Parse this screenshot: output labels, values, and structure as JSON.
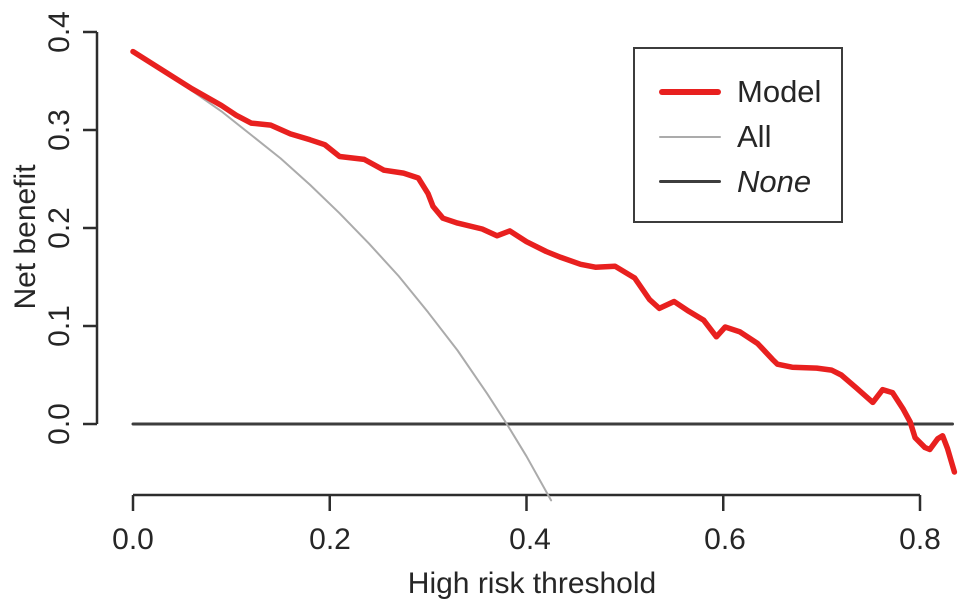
{
  "figure": {
    "xlabel": "High risk threshold",
    "ylabel": "Net benefit",
    "x_ticks": [
      "0.0",
      "0.2",
      "0.4",
      "0.6",
      "0.8"
    ],
    "y_ticks": [
      "0.4",
      "0.3",
      "0.2",
      "0.1",
      "0.0"
    ],
    "axis_color": "#2d2d2d",
    "text_color": "#262626",
    "background_color": "#ffffff",
    "legend": [
      {
        "label": "Model",
        "color": "#e8201f",
        "weight": 6,
        "italic": false
      },
      {
        "label": "All",
        "color": "#ababab",
        "weight": 2,
        "italic": false
      },
      {
        "label": "None",
        "color": "#3d3d3d",
        "weight": 3,
        "italic": true
      }
    ]
  },
  "chart_data": {
    "type": "line",
    "title": "",
    "xlabel": "High risk threshold",
    "ylabel": "Net benefit",
    "xlim": [
      0,
      0.84
    ],
    "ylim": [
      -0.08,
      0.4
    ],
    "x_tick_values": [
      0.0,
      0.2,
      0.4,
      0.6,
      0.8
    ],
    "y_tick_values": [
      0.0,
      0.1,
      0.2,
      0.3,
      0.4
    ],
    "grid": false,
    "legend_position": "top-right",
    "series": [
      {
        "name": "Model",
        "color": "#e8201f",
        "width": 5.5,
        "points": [
          [
            0.0,
            0.38
          ],
          [
            0.03,
            0.361
          ],
          [
            0.06,
            0.342
          ],
          [
            0.09,
            0.325
          ],
          [
            0.105,
            0.315
          ],
          [
            0.12,
            0.307
          ],
          [
            0.14,
            0.305
          ],
          [
            0.16,
            0.296
          ],
          [
            0.18,
            0.29
          ],
          [
            0.195,
            0.285
          ],
          [
            0.21,
            0.273
          ],
          [
            0.235,
            0.27
          ],
          [
            0.255,
            0.259
          ],
          [
            0.275,
            0.256
          ],
          [
            0.29,
            0.251
          ],
          [
            0.3,
            0.235
          ],
          [
            0.305,
            0.222
          ],
          [
            0.315,
            0.21
          ],
          [
            0.33,
            0.205
          ],
          [
            0.355,
            0.199
          ],
          [
            0.37,
            0.192
          ],
          [
            0.383,
            0.197
          ],
          [
            0.4,
            0.186
          ],
          [
            0.42,
            0.176
          ],
          [
            0.435,
            0.17
          ],
          [
            0.455,
            0.163
          ],
          [
            0.47,
            0.16
          ],
          [
            0.49,
            0.161
          ],
          [
            0.51,
            0.149
          ],
          [
            0.525,
            0.127
          ],
          [
            0.535,
            0.118
          ],
          [
            0.55,
            0.125
          ],
          [
            0.565,
            0.115
          ],
          [
            0.58,
            0.106
          ],
          [
            0.593,
            0.089
          ],
          [
            0.602,
            0.099
          ],
          [
            0.617,
            0.094
          ],
          [
            0.635,
            0.082
          ],
          [
            0.65,
            0.066
          ],
          [
            0.655,
            0.061
          ],
          [
            0.67,
            0.058
          ],
          [
            0.695,
            0.057
          ],
          [
            0.71,
            0.055
          ],
          [
            0.72,
            0.05
          ],
          [
            0.735,
            0.037
          ],
          [
            0.752,
            0.022
          ],
          [
            0.762,
            0.035
          ],
          [
            0.772,
            0.032
          ],
          [
            0.783,
            0.015
          ],
          [
            0.79,
            0.002
          ],
          [
            0.795,
            -0.014
          ],
          [
            0.805,
            -0.024
          ],
          [
            0.81,
            -0.026
          ],
          [
            0.818,
            -0.015
          ],
          [
            0.823,
            -0.012
          ],
          [
            0.828,
            -0.025
          ],
          [
            0.835,
            -0.049
          ]
        ]
      },
      {
        "name": "All",
        "color": "#ababab",
        "width": 2,
        "points": [
          [
            0.0,
            0.38
          ],
          [
            0.03,
            0.361
          ],
          [
            0.06,
            0.34
          ],
          [
            0.09,
            0.319
          ],
          [
            0.12,
            0.295
          ],
          [
            0.15,
            0.271
          ],
          [
            0.18,
            0.244
          ],
          [
            0.21,
            0.215
          ],
          [
            0.24,
            0.184
          ],
          [
            0.27,
            0.151
          ],
          [
            0.3,
            0.114
          ],
          [
            0.33,
            0.075
          ],
          [
            0.36,
            0.031
          ],
          [
            0.38,
            0.0
          ],
          [
            0.4,
            -0.033
          ],
          [
            0.425,
            -0.078
          ]
        ]
      },
      {
        "name": "None",
        "color": "#3d3d3d",
        "width": 3,
        "points": [
          [
            0.0,
            0.0
          ],
          [
            0.833,
            0.0
          ]
        ]
      }
    ]
  }
}
